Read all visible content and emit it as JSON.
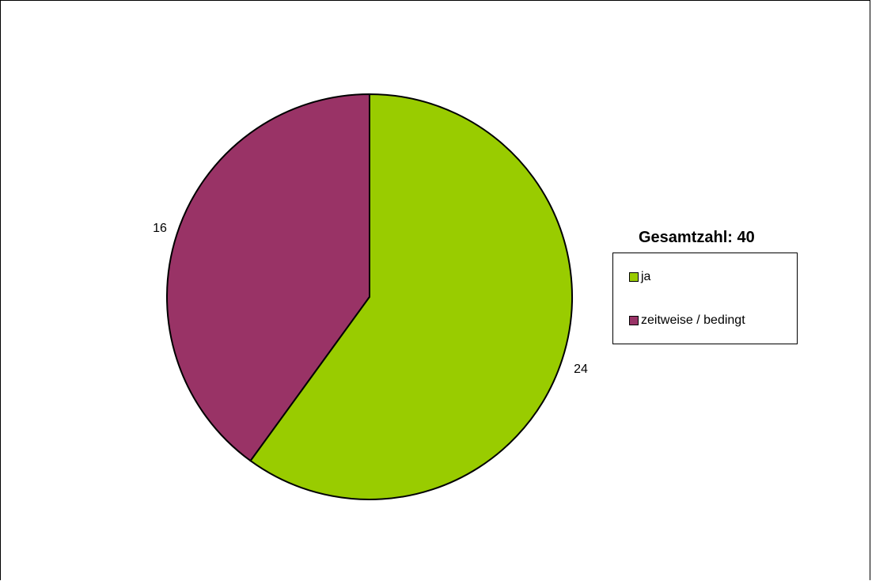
{
  "chart_data": {
    "type": "pie",
    "title": "",
    "legend_title": "Gesamtzahl: 40",
    "legend_position": "right",
    "slices": [
      {
        "label": "ja",
        "value": 24,
        "color": "#99CC00"
      },
      {
        "label": "zeitweise / bedingt",
        "value": 16,
        "color": "#993366"
      }
    ]
  }
}
